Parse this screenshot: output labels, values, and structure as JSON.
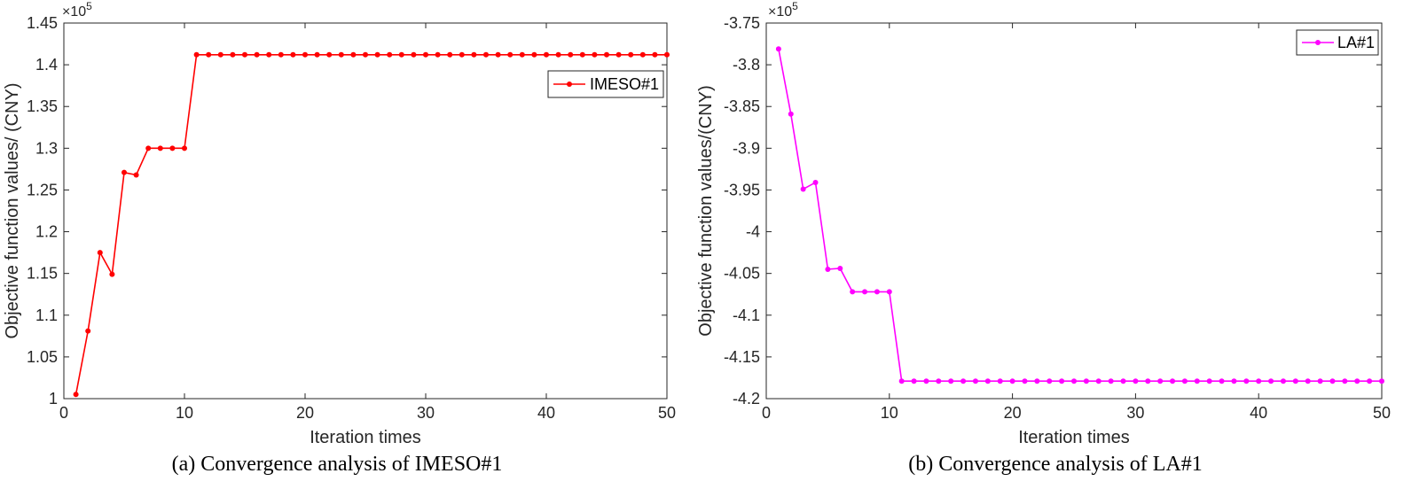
{
  "chart_data": [
    {
      "type": "line",
      "caption": "(a) Convergence analysis of IMESO#1",
      "xlabel": "Iteration times",
      "ylabel": "Objective function values/ (CNY)",
      "exponent_label": "×10",
      "exponent_power": "5",
      "xlim": [
        0,
        50
      ],
      "ylim": [
        1.0,
        1.45
      ],
      "xticks": [
        0,
        10,
        20,
        30,
        40,
        50
      ],
      "xtick_labels": [
        "0",
        "10",
        "20",
        "30",
        "40",
        "50"
      ],
      "yticks": [
        1.0,
        1.05,
        1.1,
        1.15,
        1.2,
        1.25,
        1.3,
        1.35,
        1.4,
        1.45
      ],
      "ytick_labels": [
        "1",
        "1.05",
        "1.1",
        "1.15",
        "1.2",
        "1.25",
        "1.3",
        "1.35",
        "1.4",
        "1.45"
      ],
      "legend_position": "top-right",
      "color": "#ff0000",
      "series": [
        {
          "name": "IMESO#1",
          "x": [
            1,
            2,
            3,
            4,
            5,
            6,
            7,
            8,
            9,
            10,
            11,
            12,
            13,
            14,
            15,
            16,
            17,
            18,
            19,
            20,
            21,
            22,
            23,
            24,
            25,
            26,
            27,
            28,
            29,
            30,
            31,
            32,
            33,
            34,
            35,
            36,
            37,
            38,
            39,
            40,
            41,
            42,
            43,
            44,
            45,
            46,
            47,
            48,
            49,
            50
          ],
          "y": [
            1.005,
            1.081,
            1.175,
            1.149,
            1.271,
            1.268,
            1.3,
            1.3,
            1.3,
            1.3,
            1.412,
            1.412,
            1.412,
            1.412,
            1.412,
            1.412,
            1.412,
            1.412,
            1.412,
            1.412,
            1.412,
            1.412,
            1.412,
            1.412,
            1.412,
            1.412,
            1.412,
            1.412,
            1.412,
            1.412,
            1.412,
            1.412,
            1.412,
            1.412,
            1.412,
            1.412,
            1.412,
            1.412,
            1.412,
            1.412,
            1.412,
            1.412,
            1.412,
            1.412,
            1.412,
            1.412,
            1.412,
            1.412,
            1.412,
            1.412
          ]
        }
      ]
    },
    {
      "type": "line",
      "caption": "(b) Convergence analysis of LA#1",
      "xlabel": "Iteration times",
      "ylabel": "Objective function values/(CNY)",
      "exponent_label": "×10",
      "exponent_power": "5",
      "xlim": [
        0,
        50
      ],
      "ylim": [
        -4.2,
        -3.75
      ],
      "xticks": [
        0,
        10,
        20,
        30,
        40,
        50
      ],
      "xtick_labels": [
        "0",
        "10",
        "20",
        "30",
        "40",
        "50"
      ],
      "yticks": [
        -4.2,
        -4.15,
        -4.1,
        -4.05,
        -4.0,
        -3.95,
        -3.9,
        -3.85,
        -3.8,
        -3.75
      ],
      "ytick_labels": [
        "-4.2",
        "-4.15",
        "-4.1",
        "-4.05",
        "-4",
        "-3.95",
        "-3.9",
        "-3.85",
        "-3.8",
        "-3.75"
      ],
      "legend_position": "top-right",
      "color": "#ff00ff",
      "series": [
        {
          "name": "LA#1",
          "x": [
            1,
            2,
            3,
            4,
            5,
            6,
            7,
            8,
            9,
            10,
            11,
            12,
            13,
            14,
            15,
            16,
            17,
            18,
            19,
            20,
            21,
            22,
            23,
            24,
            25,
            26,
            27,
            28,
            29,
            30,
            31,
            32,
            33,
            34,
            35,
            36,
            37,
            38,
            39,
            40,
            41,
            42,
            43,
            44,
            45,
            46,
            47,
            48,
            49,
            50
          ],
          "y": [
            -3.781,
            -3.859,
            -3.949,
            -3.941,
            -4.045,
            -4.044,
            -4.072,
            -4.072,
            -4.072,
            -4.072,
            -4.179,
            -4.179,
            -4.179,
            -4.179,
            -4.179,
            -4.179,
            -4.179,
            -4.179,
            -4.179,
            -4.179,
            -4.179,
            -4.179,
            -4.179,
            -4.179,
            -4.179,
            -4.179,
            -4.179,
            -4.179,
            -4.179,
            -4.179,
            -4.179,
            -4.179,
            -4.179,
            -4.179,
            -4.179,
            -4.179,
            -4.179,
            -4.179,
            -4.179,
            -4.179,
            -4.179,
            -4.179,
            -4.179,
            -4.179,
            -4.179,
            -4.179,
            -4.179,
            -4.179,
            -4.179,
            -4.179
          ]
        }
      ]
    }
  ]
}
